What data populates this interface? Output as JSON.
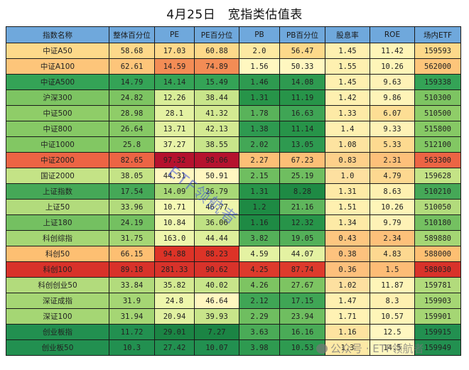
{
  "title": "4月25日　宽指类估值表",
  "watermarks": {
    "diagonal": "ETF领航者",
    "footer": "公众号 · ETF领航者"
  },
  "table": {
    "columns": [
      "指数名称",
      "整体百分位",
      "PE",
      "PE百分位",
      "PB",
      "PB百分位",
      "股息率",
      "ROE",
      "场内ETF"
    ],
    "header_color": "#6fa8dc",
    "rows": [
      {
        "cells": [
          "中证A50",
          "58.68",
          "17.03",
          "60.88",
          "2.0",
          "56.47",
          "1.45",
          "11.42",
          "159593"
        ],
        "colors": [
          "#fdd98a",
          "#fdd98a",
          "#fdd98a",
          "#fdd98a",
          "#fde9a2",
          "#fdd98a",
          "#fef0b0",
          "#fef5b8",
          "#fdd98a"
        ]
      },
      {
        "cells": [
          "中证A100",
          "62.61",
          "14.59",
          "74.89",
          "1.56",
          "50.33",
          "1.55",
          "10.26",
          "562000"
        ],
        "colors": [
          "#fdc57a",
          "#fdc57a",
          "#f38c55",
          "#f38c55",
          "#fff7c0",
          "#fff7c0",
          "#fef0b0",
          "#fef5b8",
          "#fdc57a"
        ]
      },
      {
        "cells": [
          "中证A500",
          "14.79",
          "14.14",
          "15.49",
          "1.46",
          "14.08",
          "1.45",
          "9.63",
          "159338"
        ],
        "colors": [
          "#34a356",
          "#34a356",
          "#34a356",
          "#34a356",
          "#2e9a50",
          "#2e9a50",
          "#fef0b0",
          "#fef2b6",
          "#34a356"
        ]
      },
      {
        "cells": [
          "沪深300",
          "24.82",
          "12.26",
          "38.44",
          "1.31",
          "11.19",
          "1.42",
          "9.86",
          "510300"
        ],
        "colors": [
          "#7dc462",
          "#7dc462",
          "#d9ed98",
          "#c8e58a",
          "#279449",
          "#279449",
          "#fef0b0",
          "#fef4b8",
          "#7dc462"
        ]
      },
      {
        "cells": [
          "中证500",
          "28.98",
          "28.1",
          "41.32",
          "1.78",
          "16.63",
          "1.33",
          "6.07",
          "510500"
        ],
        "colors": [
          "#8fcd68",
          "#8fcd68",
          "#e4f2a2",
          "#d4ea92",
          "#59b35a",
          "#3fa555",
          "#fdeaa6",
          "#fdde94",
          "#8fcd68"
        ]
      },
      {
        "cells": [
          "中证800",
          "26.64",
          "13.71",
          "42.13",
          "1.38",
          "11.14",
          "1.4",
          "9.33",
          "515800"
        ],
        "colors": [
          "#86c965",
          "#86c965",
          "#e1f0a0",
          "#d4ea92",
          "#2e9a50",
          "#279449",
          "#fef0b0",
          "#fef2b6",
          "#86c965"
        ]
      },
      {
        "cells": [
          "中证1000",
          "25.8",
          "37.27",
          "38.55",
          "2.02",
          "13.05",
          "1.08",
          "5.33",
          "512100"
        ],
        "colors": [
          "#82c763",
          "#82c763",
          "#e9f4a8",
          "#c8e58a",
          "#43a756",
          "#2e9a50",
          "#fde3a0",
          "#fdda90",
          "#82c763"
        ]
      },
      {
        "cells": [
          "中证2000",
          "82.65",
          "97.32",
          "98.06",
          "2.27",
          "67.23",
          "0.83",
          "2.31",
          "563300"
        ],
        "colors": [
          "#ec6444",
          "#ec6444",
          "#b5122e",
          "#b5122e",
          "#fcbf76",
          "#fcbf76",
          "#fdd08a",
          "#fdc07a",
          "#ec6444"
        ]
      },
      {
        "cells": [
          "国证2000",
          "38.05",
          "44.31",
          "50.91",
          "2.15",
          "25.19",
          "1.0",
          "4.79",
          "159628"
        ],
        "colors": [
          "#c4e386",
          "#c4e386",
          "#fff7c0",
          "#fff7c0",
          "#6fbe60",
          "#6fbe60",
          "#fde0a0",
          "#fdd890",
          "#c4e386"
        ]
      },
      {
        "cells": [
          "上证指数",
          "17.54",
          "14.09",
          "26.79",
          "1.31",
          "8.28",
          "1.31",
          "8.63",
          "510210"
        ],
        "colors": [
          "#45a857",
          "#45a857",
          "#a8d877",
          "#a8d877",
          "#279449",
          "#1e8a44",
          "#fdeaa6",
          "#fef0b0",
          "#45a857"
        ]
      },
      {
        "cells": [
          "上证50",
          "33.96",
          "10.71",
          "46.77",
          "1.2",
          "21.16",
          "1.51",
          "10.26",
          "510050"
        ],
        "colors": [
          "#b2db7c",
          "#b2db7c",
          "#f5f9b4",
          "#eef6ac",
          "#1e8a44",
          "#5fb65c",
          "#fef0b0",
          "#fef5b8",
          "#b2db7c"
        ]
      },
      {
        "cells": [
          "上证180",
          "24.19",
          "10.84",
          "36.06",
          "1.16",
          "12.32",
          "1.34",
          "9.79",
          "510180"
        ],
        "colors": [
          "#74c061",
          "#74c061",
          "#f0f7b0",
          "#bfe183",
          "#1e8a44",
          "#279449",
          "#fdeaa6",
          "#fef2b6",
          "#74c061"
        ]
      },
      {
        "cells": [
          "科创综指",
          "31.75",
          "163.0",
          "44.44",
          "3.82",
          "19.05",
          "0.43",
          "2.34",
          "589880"
        ],
        "colors": [
          "#a5d674",
          "#a5d674",
          "#eef6ac",
          "#def09c",
          "#54b059",
          "#54b059",
          "#fdc680",
          "#fdc07a",
          "#a5d674"
        ]
      },
      {
        "cells": [
          "科创50",
          "66.15",
          "94.88",
          "88.23",
          "4.59",
          "44.07",
          "0.38",
          "4.83",
          "588000"
        ],
        "colors": [
          "#fdbf72",
          "#fdbf72",
          "#dd3327",
          "#dd3327",
          "#e4f2a2",
          "#e4f2a2",
          "#fdc27e",
          "#fdd890",
          "#fdbf72"
        ]
      },
      {
        "cells": [
          "科创100",
          "89.18",
          "281.33",
          "90.62",
          "4.25",
          "87.74",
          "0.36",
          "1.5",
          "588030"
        ],
        "colors": [
          "#d8322a",
          "#d8322a",
          "#d8322a",
          "#d8322a",
          "#dd3a2c",
          "#dd3a2c",
          "#fdc07c",
          "#fdbc76",
          "#d8322a"
        ]
      },
      {
        "cells": [
          "科创创业50",
          "33.84",
          "35.82",
          "40.02",
          "4.26",
          "27.67",
          "1.02",
          "11.87",
          "159781"
        ],
        "colors": [
          "#b2db7c",
          "#b2db7c",
          "#d4ea92",
          "#c8e58a",
          "#7dc462",
          "#7dc462",
          "#fde0a0",
          "#fef5b8",
          "#b2db7c"
        ]
      },
      {
        "cells": [
          "深证成指",
          "31.9",
          "24.8",
          "46.64",
          "2.12",
          "17.15",
          "1.47",
          "8.3",
          "159903"
        ],
        "colors": [
          "#a5d674",
          "#a5d674",
          "#eef6ac",
          "#fff7c0",
          "#3fa555",
          "#3fa555",
          "#fef0b0",
          "#fef0b0",
          "#a5d674"
        ]
      },
      {
        "cells": [
          "深证100",
          "31.94",
          "20.94",
          "39.93",
          "2.29",
          "23.94",
          "1.71",
          "10.57",
          "159901"
        ],
        "colors": [
          "#a5d674",
          "#a5d674",
          "#e1f0a0",
          "#c8e58a",
          "#6fbe60",
          "#6fbe60",
          "#fff2b4",
          "#fef5b8",
          "#a5d674"
        ]
      },
      {
        "cells": [
          "创业板指",
          "11.72",
          "29.01",
          "7.27",
          "3.63",
          "16.16",
          "1.16",
          "12.5",
          "159915"
        ],
        "colors": [
          "#229050",
          "#229050",
          "#1b8444",
          "#1b8444",
          "#4aab57",
          "#4aab57",
          "#fde3a0",
          "#fff7c0",
          "#229050"
        ]
      },
      {
        "cells": [
          "创业板50",
          "10.3",
          "27.42",
          "10.07",
          "3.98",
          "10.53",
          "1.3",
          "14.5",
          "159949"
        ],
        "colors": [
          "#229050",
          "#229050",
          "#229050",
          "#229050",
          "#2e9a50",
          "#2e9a50",
          "#fde9a6",
          "#fff7c0",
          "#229050"
        ]
      }
    ]
  },
  "chart_data": {
    "type": "table",
    "title": "4月25日　宽指类估值表",
    "columns": [
      "指数名称",
      "整体百分位",
      "PE",
      "PE百分位",
      "PB",
      "PB百分位",
      "股息率",
      "ROE",
      "场内ETF"
    ],
    "rows": [
      [
        "中证A50",
        58.68,
        17.03,
        60.88,
        2.0,
        56.47,
        1.45,
        11.42,
        "159593"
      ],
      [
        "中证A100",
        62.61,
        14.59,
        74.89,
        1.56,
        50.33,
        1.55,
        10.26,
        "562000"
      ],
      [
        "中证A500",
        14.79,
        14.14,
        15.49,
        1.46,
        14.08,
        1.45,
        9.63,
        "159338"
      ],
      [
        "沪深300",
        24.82,
        12.26,
        38.44,
        1.31,
        11.19,
        1.42,
        9.86,
        "510300"
      ],
      [
        "中证500",
        28.98,
        28.1,
        41.32,
        1.78,
        16.63,
        1.33,
        6.07,
        "510500"
      ],
      [
        "中证800",
        26.64,
        13.71,
        42.13,
        1.38,
        11.14,
        1.4,
        9.33,
        "515800"
      ],
      [
        "中证1000",
        25.8,
        37.27,
        38.55,
        2.02,
        13.05,
        1.08,
        5.33,
        "512100"
      ],
      [
        "中证2000",
        82.65,
        97.32,
        98.06,
        2.27,
        67.23,
        0.83,
        2.31,
        "563300"
      ],
      [
        "国证2000",
        38.05,
        44.31,
        50.91,
        2.15,
        25.19,
        1.0,
        4.79,
        "159628"
      ],
      [
        "上证指数",
        17.54,
        14.09,
        26.79,
        1.31,
        8.28,
        1.31,
        8.63,
        "510210"
      ],
      [
        "上证50",
        33.96,
        10.71,
        46.77,
        1.2,
        21.16,
        1.51,
        10.26,
        "510050"
      ],
      [
        "上证180",
        24.19,
        10.84,
        36.06,
        1.16,
        12.32,
        1.34,
        9.79,
        "510180"
      ],
      [
        "科创综指",
        31.75,
        163.0,
        44.44,
        3.82,
        19.05,
        0.43,
        2.34,
        "589880"
      ],
      [
        "科创50",
        66.15,
        94.88,
        88.23,
        4.59,
        44.07,
        0.38,
        4.83,
        "588000"
      ],
      [
        "科创100",
        89.18,
        281.33,
        90.62,
        4.25,
        87.74,
        0.36,
        1.5,
        "588030"
      ],
      [
        "科创创业50",
        33.84,
        35.82,
        40.02,
        4.26,
        27.67,
        1.02,
        11.87,
        "159781"
      ],
      [
        "深证成指",
        31.9,
        24.8,
        46.64,
        2.12,
        17.15,
        1.47,
        8.3,
        "159903"
      ],
      [
        "深证100",
        31.94,
        20.94,
        39.93,
        2.29,
        23.94,
        1.71,
        10.57,
        "159901"
      ],
      [
        "创业板指",
        11.72,
        29.01,
        7.27,
        3.63,
        16.16,
        1.16,
        12.5,
        "159915"
      ],
      [
        "创业板50",
        10.3,
        27.42,
        10.07,
        3.98,
        10.53,
        1.3,
        14.5,
        "159949"
      ]
    ],
    "color_scale": "green (low/cheap) → yellow → red (high/expensive) heatmap per cell"
  }
}
